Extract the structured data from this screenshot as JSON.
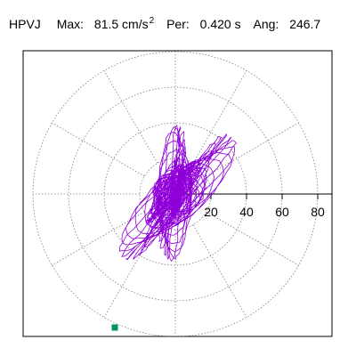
{
  "header": {
    "station": "HPVJ",
    "max_label": "Max:",
    "max_value": "81.5 cm/s",
    "max_exp": "2",
    "per_label": "Per:",
    "per_value": "0.420 s",
    "ang_label": "Ang:",
    "ang_value": "246.7"
  },
  "colors": {
    "trace": "#8f00d9",
    "marker": "#009060",
    "grid": "#808080",
    "axis": "#000000"
  },
  "chart_data": {
    "type": "scatter",
    "title": "",
    "xlabel": "",
    "ylabel": "",
    "xlim": [
      -87,
      87
    ],
    "ylim": [
      -80,
      80
    ],
    "rings": [
      20,
      40,
      60,
      80
    ],
    "radial_spokes_deg": [
      30,
      60,
      90,
      120,
      150,
      180,
      210,
      240,
      270,
      300,
      330,
      360
    ],
    "tick_labels": [
      "20",
      "40",
      "60",
      "80"
    ],
    "grid": true,
    "max_point": {
      "x": -34,
      "y": -75
    },
    "max_amplitude": 81.5,
    "max_angle_deg": 246.7
  }
}
